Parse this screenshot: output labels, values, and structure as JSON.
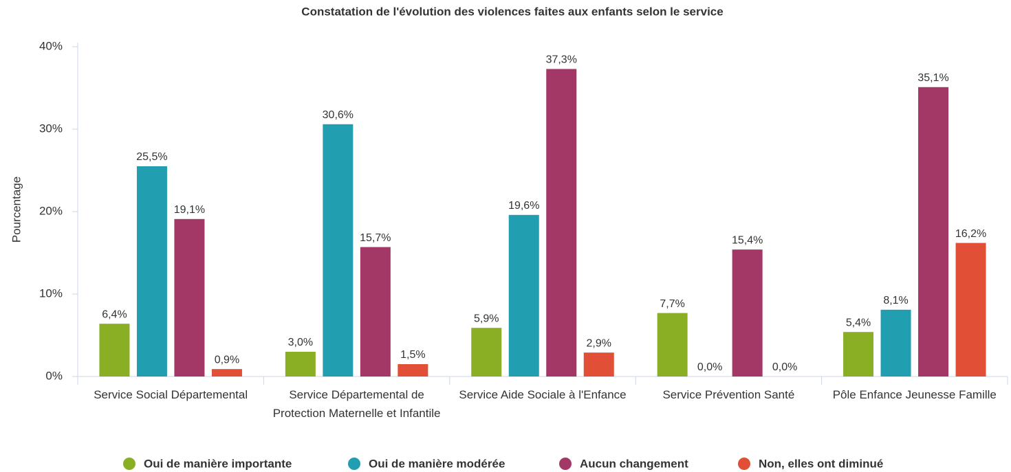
{
  "chart_data": {
    "type": "bar",
    "title": "Constatation de l'évolution des violences faites aux enfants selon le service",
    "ylabel": "Pourcentage",
    "categories": [
      "Service Social Départemental",
      "Service Départemental de Protection Maternelle et Infantile",
      "Service Aide Sociale à l'Enfance",
      "Service Prévention Santé",
      "Pôle Enfance Jeunesse Famille"
    ],
    "series": [
      {
        "name": "Oui de manière importante",
        "color": "#8aaf25",
        "values": [
          6.4,
          3.0,
          5.9,
          7.7,
          5.4
        ],
        "value_labels": [
          "6,4%",
          "3,0%",
          "5,9%",
          "7,7%",
          "5,4%"
        ]
      },
      {
        "name": "Oui de manière modérée",
        "color": "#219eb0",
        "values": [
          25.5,
          30.6,
          19.6,
          0.0,
          8.1
        ],
        "value_labels": [
          "25,5%",
          "30,6%",
          "19,6%",
          "0,0%",
          "8,1%"
        ]
      },
      {
        "name": "Aucun changement",
        "color": "#a33766",
        "values": [
          19.1,
          15.7,
          37.3,
          15.4,
          35.1
        ],
        "value_labels": [
          "19,1%",
          "15,7%",
          "37,3%",
          "15,4%",
          "35,1%"
        ]
      },
      {
        "name": "Non, elles ont diminué",
        "color": "#e04f36",
        "values": [
          0.9,
          1.5,
          2.9,
          0.0,
          16.2
        ],
        "value_labels": [
          "0,9%",
          "1,5%",
          "2,9%",
          "0,0%",
          "16,2%"
        ]
      }
    ],
    "ylim": [
      0,
      40
    ],
    "yticks": [
      {
        "value": 0,
        "label": "0%"
      },
      {
        "value": 10,
        "label": "10%"
      },
      {
        "value": 20,
        "label": "20%"
      },
      {
        "value": 30,
        "label": "30%"
      },
      {
        "value": 40,
        "label": "40%"
      }
    ],
    "grid": false,
    "legend": "bottom"
  }
}
